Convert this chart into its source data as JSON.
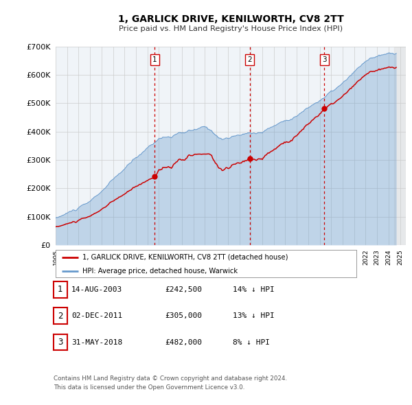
{
  "title": "1, GARLICK DRIVE, KENILWORTH, CV8 2TT",
  "subtitle": "Price paid vs. HM Land Registry's House Price Index (HPI)",
  "legend_entry1": "1, GARLICK DRIVE, KENILWORTH, CV8 2TT (detached house)",
  "legend_entry2": "HPI: Average price, detached house, Warwick",
  "transactions": [
    {
      "num": 1,
      "date_val": 2003.617,
      "price": 242500,
      "label": "14-AUG-2003",
      "amount": "£242,500",
      "pct": "14% ↓ HPI"
    },
    {
      "num": 2,
      "date_val": 2011.918,
      "price": 305000,
      "label": "02-DEC-2011",
      "amount": "£305,000",
      "pct": "13% ↓ HPI"
    },
    {
      "num": 3,
      "date_val": 2018.413,
      "price": 482000,
      "label": "31-MAY-2018",
      "amount": "£482,000",
      "pct": "8% ↓ HPI"
    }
  ],
  "red_line_color": "#cc0000",
  "blue_line_color": "#6699cc",
  "background_color": "#ffffff",
  "plot_bg_color": "#f0f4f8",
  "grid_color": "#cccccc",
  "footnote1": "Contains HM Land Registry data © Crown copyright and database right 2024.",
  "footnote2": "This data is licensed under the Open Government Licence v3.0.",
  "ylim": [
    0,
    700000
  ],
  "yticks": [
    0,
    100000,
    200000,
    300000,
    400000,
    500000,
    600000,
    700000
  ],
  "xmin": 1995.0,
  "xmax": 2025.5
}
